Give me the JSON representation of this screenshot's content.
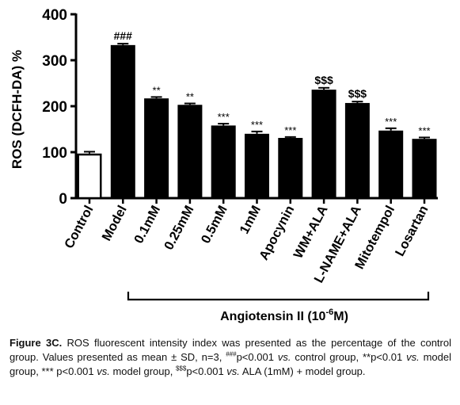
{
  "chart_data": {
    "type": "bar",
    "ylabel": "ROS (DCFH-DA) %",
    "ylim": [
      0,
      400
    ],
    "yticks": [
      "0",
      "100",
      "200",
      "300",
      "400"
    ],
    "categories": [
      "Control",
      "Model",
      "0.1mM",
      "0.25mM",
      "0.5mM",
      "1mM",
      "Apocynin",
      "WM+ALA",
      "L-NAME+ALA",
      "Mitotempol",
      "Losartan"
    ],
    "values": [
      97,
      333,
      217,
      203,
      158,
      140,
      131,
      236,
      207,
      147,
      129
    ],
    "errors": [
      4,
      3,
      3,
      3,
      4,
      5,
      2,
      4,
      3,
      5,
      3
    ],
    "annotations": [
      "",
      "###",
      "**",
      "**",
      "***",
      "***",
      "***",
      "$$$",
      "$$$",
      "***",
      "***"
    ],
    "bar_fill": [
      "#ffffff",
      "#000000",
      "#000000",
      "#000000",
      "#000000",
      "#000000",
      "#000000",
      "#000000",
      "#000000",
      "#000000",
      "#000000"
    ],
    "bracket_label": "Angiotensin II (10",
    "bracket_label_sup": "-6",
    "bracket_label_end": "M)"
  },
  "caption": {
    "figure_label": "Figure 3C.",
    "text_1": " ROS fluorescent intensity index was presented as the percentage of the control group. Values presented as mean ± SD, n=3, ",
    "sup_1": "###",
    "text_2": "p<0.001 ",
    "vs_1": "vs.",
    "text_3": " control group, ",
    "text_4": "**p<0.01 ",
    "vs_2": "vs.",
    "text_5": " model group, *** p<0.001 ",
    "vs_3": "vs.",
    "text_6": " model group, ",
    "sup_2": "$$$",
    "text_7": "p<0.001 ",
    "vs_4": "vs.",
    "text_8": " ALA (1mM) + model group."
  }
}
